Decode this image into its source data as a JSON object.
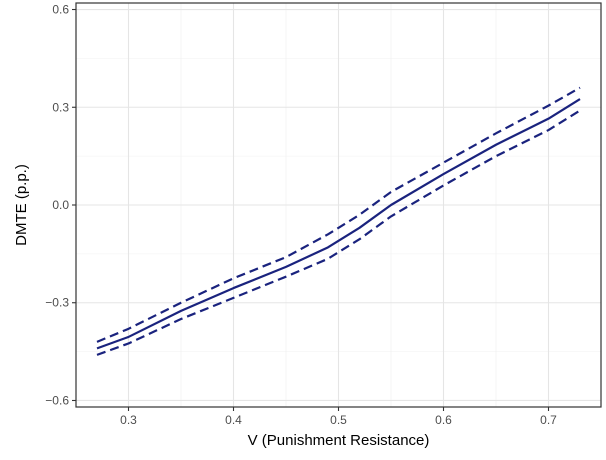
{
  "chart_data": {
    "type": "line",
    "title": "",
    "xlabel": "V (Punishment Resistance)",
    "ylabel": "DMTE (p.p.)",
    "xlim": [
      0.25,
      0.75
    ],
    "ylim": [
      -0.62,
      0.62
    ],
    "x_ticks": [
      0.3,
      0.4,
      0.5,
      0.6,
      0.7
    ],
    "x_tick_labels": [
      "0.3",
      "0.4",
      "0.5",
      "0.6",
      "0.7"
    ],
    "y_ticks": [
      -0.6,
      -0.3,
      0.0,
      0.3,
      0.6
    ],
    "y_tick_labels": [
      "−0.6",
      "−0.3",
      "0.0",
      "0.3",
      "0.6"
    ],
    "grid": true,
    "legend": "none",
    "color": "#1a237e",
    "x": [
      0.27,
      0.3,
      0.35,
      0.4,
      0.45,
      0.49,
      0.52,
      0.55,
      0.6,
      0.65,
      0.7,
      0.73
    ],
    "series": [
      {
        "values": [
          -0.44,
          -0.405,
          -0.325,
          -0.255,
          -0.19,
          -0.13,
          -0.07,
          0.0,
          0.095,
          0.185,
          0.265,
          0.325
        ],
        "style": "solid"
      },
      {
        "values": [
          -0.42,
          -0.38,
          -0.3,
          -0.225,
          -0.16,
          -0.09,
          -0.03,
          0.04,
          0.13,
          0.22,
          0.305,
          0.36
        ],
        "style": "dashed"
      },
      {
        "values": [
          -0.46,
          -0.425,
          -0.35,
          -0.285,
          -0.22,
          -0.165,
          -0.105,
          -0.035,
          0.06,
          0.15,
          0.23,
          0.29
        ],
        "style": "dashed"
      }
    ]
  }
}
